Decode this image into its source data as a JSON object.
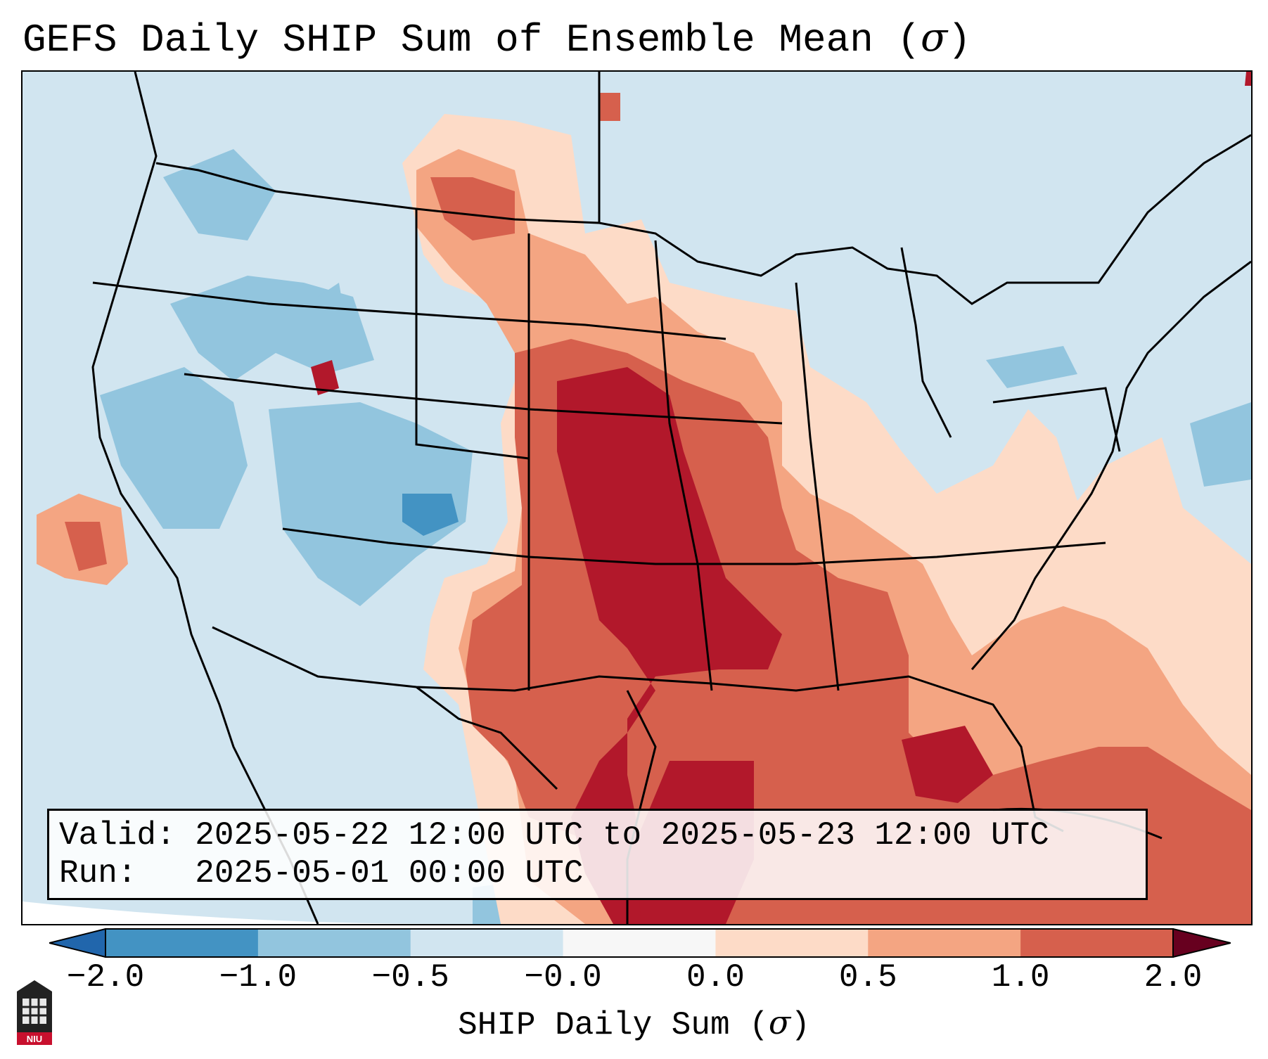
{
  "title": "GEFS Daily SHIP Sum of Ensemble Mean (",
  "title_sigma": "σ",
  "title_close": ")",
  "info": {
    "valid_label": "Valid:",
    "valid_value": "2025-05-22 12:00 UTC to 2025-05-23 12:00 UTC",
    "run_label": "Run:",
    "run_value": "2025-05-01 00:00 UTC"
  },
  "colorbar": {
    "label": "SHIP Daily Sum (",
    "label_sigma": "σ",
    "label_close": ")",
    "ticks": [
      "−2.0",
      "−1.0",
      "−0.5",
      "−0.0",
      "0.0",
      "0.5",
      "1.0",
      "2.0"
    ],
    "bin_colors": [
      "#4393c3",
      "#92c5de",
      "#d1e5f0",
      "#f7f7f7",
      "#fddbc7",
      "#f4a582",
      "#d6604d",
      "#b2182b"
    ],
    "under_color": "#2166ac",
    "over_color": "#67001f"
  },
  "logo": {
    "text": "NIU",
    "icon": "university-building-icon"
  }
}
